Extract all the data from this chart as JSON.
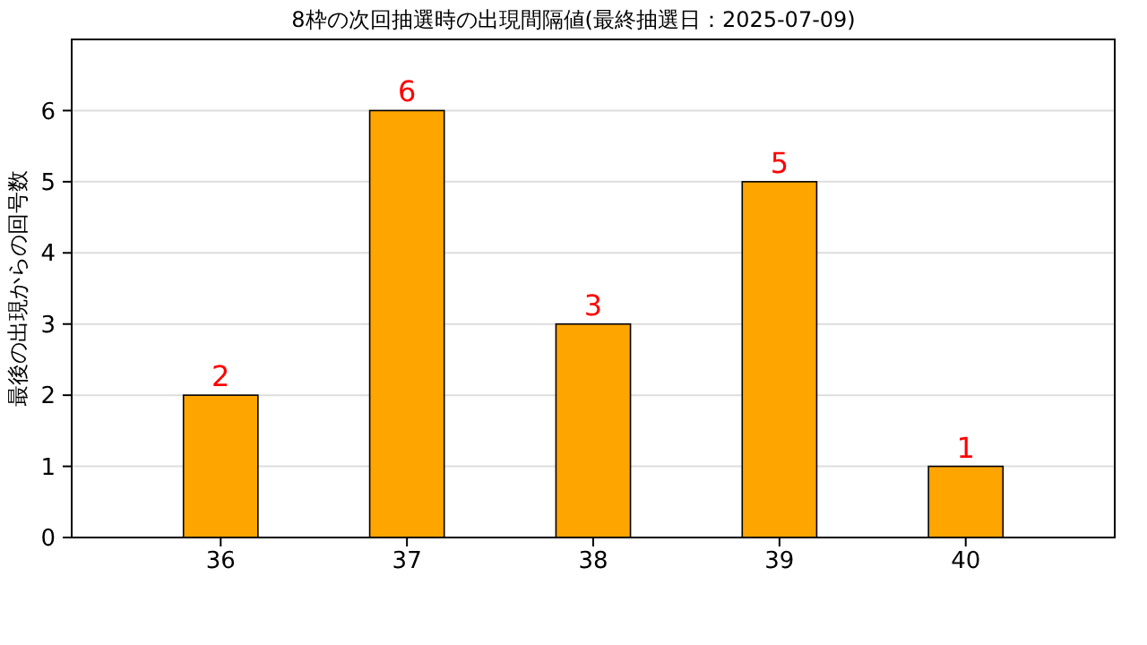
{
  "chart_data": {
    "type": "bar",
    "title": "8枠の次回抽選時の出現間隔値(最終抽選日：2025-07-09)",
    "ylabel": "最後の出現からの回号数",
    "categories": [
      "36",
      "37",
      "38",
      "39",
      "40"
    ],
    "values": [
      2,
      6,
      3,
      5,
      1
    ],
    "color": "#ffa500",
    "ylim": [
      0,
      7
    ],
    "yticks": [
      0,
      1,
      2,
      3,
      4,
      5,
      6
    ],
    "grid": "y",
    "data_labels": true
  }
}
